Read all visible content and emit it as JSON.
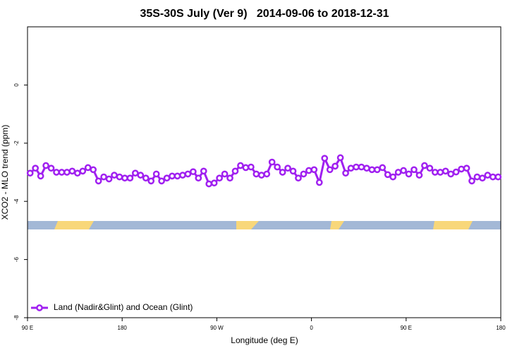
{
  "chart_data": {
    "type": "line",
    "title": "35S-30S July (Ver 9)   2014-09-06 to 2018-12-31",
    "x_label": "Longitude (deg E)",
    "y_label": "XCO2 - MLO trend (ppm)",
    "xlim": [
      90,
      540
    ],
    "xticks": [
      {
        "value": 90,
        "label": "90 E"
      },
      180,
      {
        "value": 270,
        "label": "90 W"
      },
      {
        "value": 360,
        "label": "0"
      },
      {
        "value": 450,
        "label": "90 E"
      },
      {
        "value": 540,
        "label": "180"
      }
    ],
    "ylim": [
      -8,
      2
    ],
    "yticks": [
      -8,
      -6,
      -4,
      -2,
      0
    ],
    "legend": "bottomleft",
    "x": [
      92.5,
      97.5,
      102.5,
      107.5,
      112.5,
      117.5,
      122.5,
      127.5,
      132.5,
      137.5,
      142.5,
      147.5,
      152.5,
      157.5,
      162.5,
      167.5,
      172.5,
      177.5,
      182.5,
      187.5,
      192.5,
      197.5,
      202.5,
      207.5,
      212.5,
      217.5,
      222.5,
      227.5,
      232.5,
      237.5,
      242.5,
      247.5,
      252.5,
      257.5,
      262.5,
      267.5,
      272.5,
      277.5,
      282.5,
      287.5,
      292.5,
      297.5,
      302.5,
      307.5,
      312.5,
      317.5,
      322.5,
      327.5,
      332.5,
      337.5,
      342.5,
      347.5,
      352.5,
      357.5,
      362.5,
      367.5,
      372.5,
      377.5,
      382.5,
      387.5,
      392.5,
      397.5,
      402.5,
      407.5,
      412.5,
      417.5,
      422.5,
      427.5,
      432.5,
      437.5,
      442.5,
      447.5,
      452.5,
      457.5,
      462.5,
      467.5,
      472.5,
      477.5,
      482.5,
      487.5,
      492.5,
      497.5,
      502.5,
      507.5,
      512.5,
      517.5,
      522.5,
      527.5,
      532.5,
      537.5
    ],
    "series": [
      {
        "name": "Land (Nadir&Glint) and Ocean (Glint)",
        "color": "#a020f0",
        "values": [
          -3.03,
          -2.86,
          -3.13,
          -2.77,
          -2.86,
          -3.0,
          -3.0,
          -3.0,
          -2.96,
          -3.03,
          -2.96,
          -2.84,
          -2.91,
          -3.3,
          -3.16,
          -3.23,
          -3.1,
          -3.16,
          -3.2,
          -3.2,
          -3.03,
          -3.1,
          -3.2,
          -3.3,
          -3.06,
          -3.3,
          -3.2,
          -3.13,
          -3.13,
          -3.1,
          -3.06,
          -2.98,
          -3.2,
          -2.96,
          -3.4,
          -3.37,
          -3.2,
          -3.06,
          -3.2,
          -2.96,
          -2.77,
          -2.84,
          -2.82,
          -3.06,
          -3.1,
          -3.06,
          -2.65,
          -2.82,
          -3.0,
          -2.86,
          -2.96,
          -3.2,
          -3.06,
          -2.94,
          -2.91,
          -3.35,
          -2.52,
          -2.91,
          -2.79,
          -2.5,
          -3.03,
          -2.86,
          -2.82,
          -2.82,
          -2.86,
          -2.91,
          -2.91,
          -2.84,
          -3.08,
          -3.16,
          -3.0,
          -2.94,
          -3.06,
          -2.91,
          -3.1,
          -2.77,
          -2.86,
          -3.0,
          -3.0,
          -2.96,
          -3.06,
          -2.99,
          -2.89,
          -2.86,
          -3.3,
          -3.16,
          -3.2,
          -3.1,
          -3.16,
          -3.16
        ]
      }
    ]
  }
}
